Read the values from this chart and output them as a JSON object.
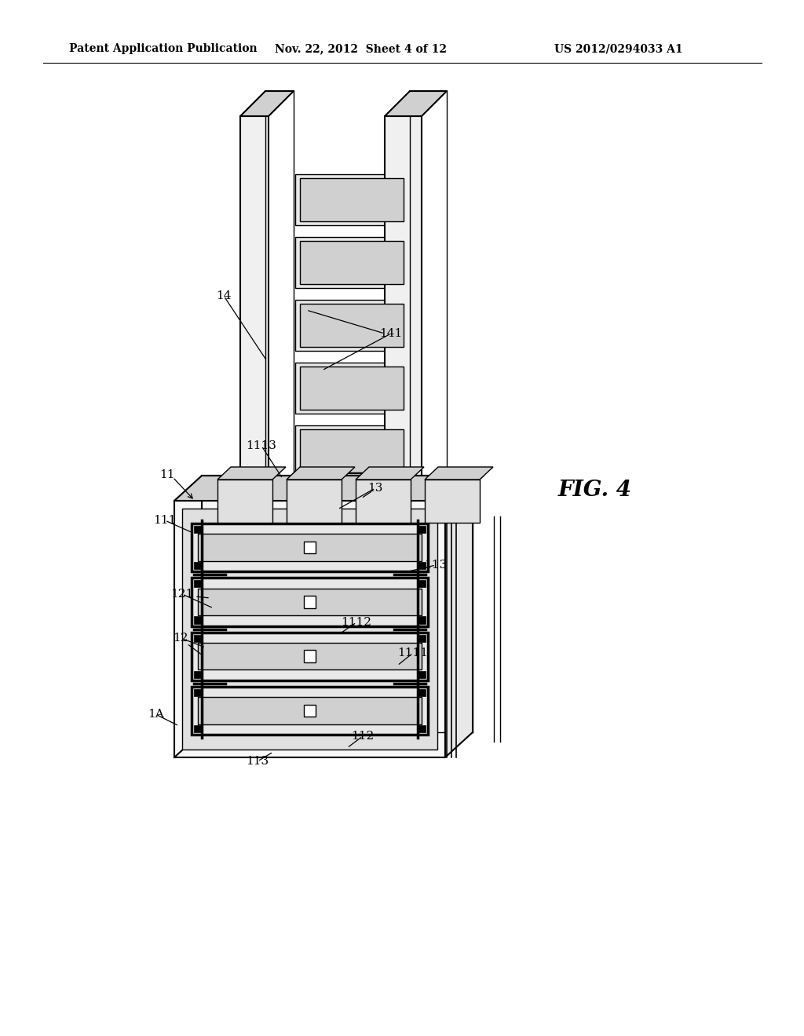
{
  "background_color": "#ffffff",
  "header_left": "Patent Application Publication",
  "header_center": "Nov. 22, 2012  Sheet 4 of 12",
  "header_right": "US 2012/0294033 A1",
  "fig_label": "FIG. 4",
  "line_color": "#000000",
  "lw_thin": 1.0,
  "lw_med": 1.5,
  "lw_thick": 2.5,
  "gray_light": "#f0f0f0",
  "gray_mid": "#d0d0d0",
  "gray_dark": "#a0a0a0"
}
